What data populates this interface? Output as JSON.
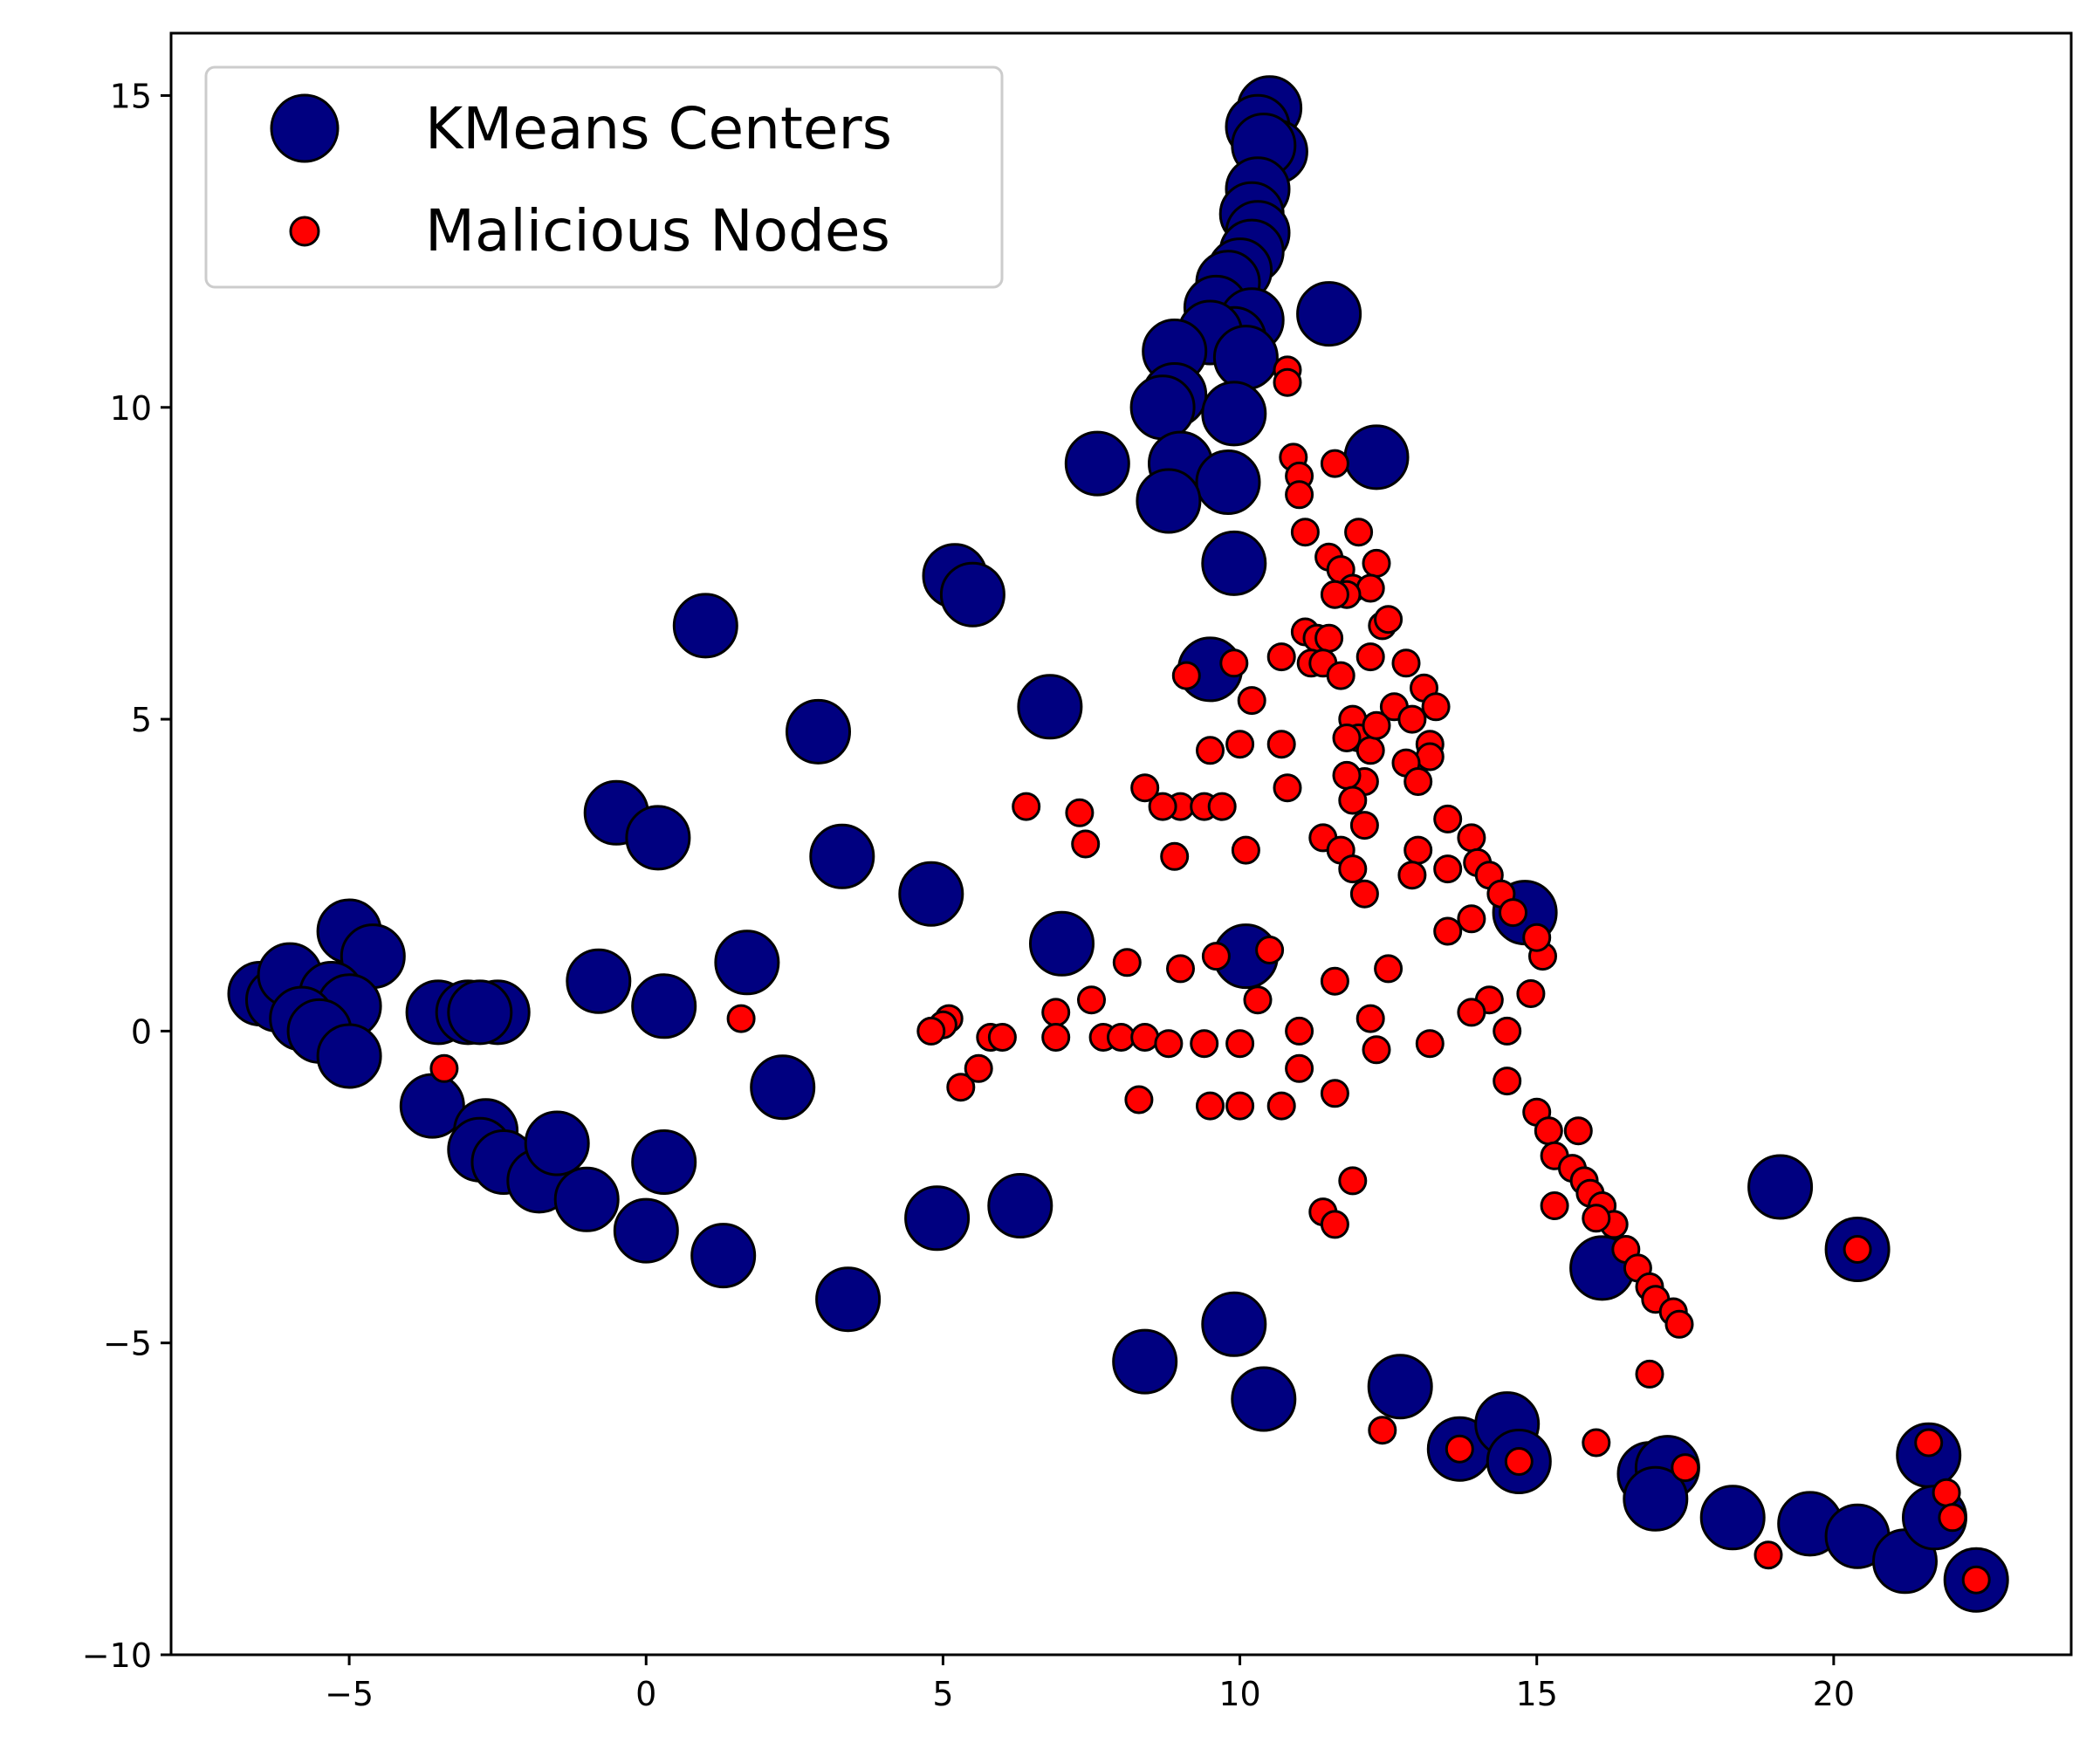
{
  "chart_data": {
    "type": "scatter",
    "xlim": [
      -8,
      24
    ],
    "ylim": [
      -10,
      16
    ],
    "xticks": [
      -5,
      0,
      5,
      10,
      15,
      20
    ],
    "yticks": [
      -10,
      -5,
      0,
      5,
      10,
      15
    ],
    "xtick_labels": [
      "−5",
      "0",
      "5",
      "10",
      "15",
      "20"
    ],
    "ytick_labels": [
      "−10",
      "−5",
      "0",
      "5",
      "10",
      "15"
    ],
    "grid": false,
    "legend_position": "top-left",
    "series": [
      {
        "name": "KMeans Centers",
        "color": "#000080",
        "edge_color": "#000000",
        "marker_size": "large",
        "points": [
          [
            10.5,
            14.8
          ],
          [
            10.3,
            14.5
          ],
          [
            10.6,
            14.1
          ],
          [
            10.4,
            14.2
          ],
          [
            10.3,
            13.5
          ],
          [
            10.2,
            13.1
          ],
          [
            10.3,
            12.8
          ],
          [
            10.2,
            12.5
          ],
          [
            10.0,
            12.2
          ],
          [
            9.8,
            12.0
          ],
          [
            9.6,
            11.6
          ],
          [
            10.2,
            11.4
          ],
          [
            9.9,
            11.1
          ],
          [
            9.5,
            11.2
          ],
          [
            8.9,
            10.9
          ],
          [
            11.5,
            11.5
          ],
          [
            10.1,
            10.8
          ],
          [
            8.9,
            10.2
          ],
          [
            8.7,
            10.0
          ],
          [
            9.9,
            9.9
          ],
          [
            12.3,
            9.2
          ],
          [
            9.0,
            9.1
          ],
          [
            7.6,
            9.1
          ],
          [
            9.8,
            8.8
          ],
          [
            8.8,
            8.5
          ],
          [
            9.9,
            7.5
          ],
          [
            5.2,
            7.3
          ],
          [
            5.5,
            7.0
          ],
          [
            1.0,
            6.5
          ],
          [
            9.5,
            5.8
          ],
          [
            6.8,
            5.2
          ],
          [
            2.9,
            4.8
          ],
          [
            -0.5,
            3.5
          ],
          [
            0.2,
            3.1
          ],
          [
            3.3,
            2.8
          ],
          [
            4.8,
            2.2
          ],
          [
            14.8,
            1.9
          ],
          [
            -5.0,
            1.6
          ],
          [
            -4.6,
            1.2
          ],
          [
            7.0,
            1.4
          ],
          [
            1.7,
            1.1
          ],
          [
            10.1,
            1.2
          ],
          [
            -0.8,
            0.8
          ],
          [
            -6.5,
            0.6
          ],
          [
            -6.2,
            0.5
          ],
          [
            -6.0,
            0.9
          ],
          [
            -5.3,
            0.6
          ],
          [
            -5.0,
            0.4
          ],
          [
            -5.8,
            0.2
          ],
          [
            -5.5,
            0.0
          ],
          [
            -3.5,
            0.3
          ],
          [
            -3.0,
            0.3
          ],
          [
            -2.5,
            0.3
          ],
          [
            -2.8,
            0.3
          ],
          [
            0.3,
            0.4
          ],
          [
            -5.0,
            -0.4
          ],
          [
            2.3,
            -0.9
          ],
          [
            -3.6,
            -1.2
          ],
          [
            -2.7,
            -1.6
          ],
          [
            -2.8,
            -1.9
          ],
          [
            -2.4,
            -2.1
          ],
          [
            -1.8,
            -2.4
          ],
          [
            -1.5,
            -1.8
          ],
          [
            -1.0,
            -2.7
          ],
          [
            0.3,
            -2.1
          ],
          [
            0.0,
            -3.2
          ],
          [
            1.3,
            -3.6
          ],
          [
            4.9,
            -3.0
          ],
          [
            6.3,
            -2.8
          ],
          [
            3.4,
            -4.3
          ],
          [
            16.1,
            -3.8
          ],
          [
            19.1,
            -2.5
          ],
          [
            20.4,
            -3.5
          ],
          [
            9.9,
            -4.7
          ],
          [
            8.4,
            -5.3
          ],
          [
            10.4,
            -5.9
          ],
          [
            12.7,
            -5.7
          ],
          [
            13.7,
            -6.7
          ],
          [
            14.5,
            -6.3
          ],
          [
            14.7,
            -6.9
          ],
          [
            16.9,
            -7.1
          ],
          [
            17.2,
            -7.0
          ],
          [
            17.0,
            -7.5
          ],
          [
            18.3,
            -7.8
          ],
          [
            19.6,
            -7.9
          ],
          [
            20.4,
            -8.1
          ],
          [
            21.2,
            -8.5
          ],
          [
            21.6,
            -6.8
          ],
          [
            21.7,
            -7.8
          ],
          [
            22.4,
            -8.8
          ]
        ]
      },
      {
        "name": "Malicious Nodes",
        "color": "#ff0000",
        "edge_color": "#000000",
        "marker_size": "small",
        "points": [
          [
            10.8,
            10.6
          ],
          [
            10.8,
            10.4
          ],
          [
            10.9,
            9.2
          ],
          [
            11.0,
            8.9
          ],
          [
            11.0,
            8.6
          ],
          [
            11.6,
            9.1
          ],
          [
            11.1,
            8.0
          ],
          [
            11.5,
            7.6
          ],
          [
            11.7,
            7.4
          ],
          [
            12.0,
            8.0
          ],
          [
            12.3,
            7.5
          ],
          [
            11.9,
            7.1
          ],
          [
            12.2,
            7.1
          ],
          [
            11.8,
            7.0
          ],
          [
            11.6,
            7.0
          ],
          [
            12.4,
            6.5
          ],
          [
            12.5,
            6.6
          ],
          [
            11.1,
            6.4
          ],
          [
            11.3,
            6.3
          ],
          [
            11.5,
            6.3
          ],
          [
            11.2,
            5.9
          ],
          [
            11.4,
            5.9
          ],
          [
            10.7,
            6.0
          ],
          [
            11.7,
            5.7
          ],
          [
            12.2,
            6.0
          ],
          [
            12.8,
            5.9
          ],
          [
            13.1,
            5.5
          ],
          [
            13.3,
            5.2
          ],
          [
            12.6,
            5.2
          ],
          [
            12.9,
            5.0
          ],
          [
            9.9,
            5.9
          ],
          [
            9.1,
            5.7
          ],
          [
            10.2,
            5.3
          ],
          [
            11.9,
            5.0
          ],
          [
            12.0,
            4.7
          ],
          [
            11.8,
            4.7
          ],
          [
            12.2,
            4.5
          ],
          [
            12.3,
            4.9
          ],
          [
            13.2,
            4.6
          ],
          [
            13.2,
            4.4
          ],
          [
            12.8,
            4.3
          ],
          [
            13.0,
            4.0
          ],
          [
            12.1,
            4.0
          ],
          [
            11.8,
            4.1
          ],
          [
            10.7,
            4.6
          ],
          [
            10.0,
            4.6
          ],
          [
            9.5,
            4.5
          ],
          [
            10.8,
            3.9
          ],
          [
            11.9,
            3.7
          ],
          [
            12.1,
            3.3
          ],
          [
            13.5,
            3.4
          ],
          [
            13.9,
            3.1
          ],
          [
            13.5,
            2.6
          ],
          [
            13.0,
            2.9
          ],
          [
            12.9,
            2.5
          ],
          [
            14.0,
            2.7
          ],
          [
            14.2,
            2.5
          ],
          [
            14.4,
            2.2
          ],
          [
            14.6,
            1.9
          ],
          [
            13.5,
            1.6
          ],
          [
            13.9,
            1.8
          ],
          [
            15.1,
            1.2
          ],
          [
            15.0,
            1.5
          ],
          [
            11.4,
            3.1
          ],
          [
            11.7,
            2.9
          ],
          [
            11.9,
            2.6
          ],
          [
            12.1,
            2.2
          ],
          [
            10.1,
            2.9
          ],
          [
            8.9,
            2.8
          ],
          [
            9.0,
            3.6
          ],
          [
            8.7,
            3.6
          ],
          [
            9.4,
            3.6
          ],
          [
            9.7,
            3.6
          ],
          [
            8.4,
            3.9
          ],
          [
            7.3,
            3.5
          ],
          [
            7.4,
            3.0
          ],
          [
            6.4,
            3.6
          ],
          [
            10.5,
            1.3
          ],
          [
            9.6,
            1.2
          ],
          [
            11.6,
            0.8
          ],
          [
            12.5,
            1.0
          ],
          [
            14.2,
            0.5
          ],
          [
            14.9,
            0.6
          ],
          [
            10.3,
            0.5
          ],
          [
            9.0,
            1.0
          ],
          [
            8.1,
            1.1
          ],
          [
            7.5,
            0.5
          ],
          [
            13.9,
            0.3
          ],
          [
            12.2,
            0.2
          ],
          [
            14.5,
            0.0
          ],
          [
            11.0,
            0.0
          ],
          [
            6.9,
            0.3
          ],
          [
            6.9,
            -0.1
          ],
          [
            5.1,
            0.2
          ],
          [
            5.0,
            0.1
          ],
          [
            4.8,
            0.0
          ],
          [
            5.8,
            -0.1
          ],
          [
            6.0,
            -0.1
          ],
          [
            7.7,
            -0.1
          ],
          [
            8.0,
            -0.1
          ],
          [
            8.4,
            -0.1
          ],
          [
            8.8,
            -0.2
          ],
          [
            9.4,
            -0.2
          ],
          [
            10.0,
            -0.2
          ],
          [
            12.3,
            -0.3
          ],
          [
            13.2,
            -0.2
          ],
          [
            5.3,
            -0.9
          ],
          [
            5.6,
            -0.6
          ],
          [
            11.0,
            -0.6
          ],
          [
            11.6,
            -1.0
          ],
          [
            8.3,
            -1.1
          ],
          [
            9.5,
            -1.2
          ],
          [
            10.0,
            -1.2
          ],
          [
            10.7,
            -1.2
          ],
          [
            14.5,
            -0.8
          ],
          [
            15.0,
            -1.3
          ],
          [
            15.2,
            -1.6
          ],
          [
            15.7,
            -1.6
          ],
          [
            15.3,
            -2.0
          ],
          [
            15.6,
            -2.2
          ],
          [
            15.8,
            -2.4
          ],
          [
            15.9,
            -2.6
          ],
          [
            16.1,
            -2.8
          ],
          [
            16.3,
            -3.1
          ],
          [
            16.5,
            -3.5
          ],
          [
            16.7,
            -3.8
          ],
          [
            16.9,
            -4.1
          ],
          [
            17.0,
            -4.3
          ],
          [
            17.3,
            -4.5
          ],
          [
            17.4,
            -4.7
          ],
          [
            15.3,
            -2.8
          ],
          [
            11.9,
            -2.4
          ],
          [
            11.4,
            -2.9
          ],
          [
            11.6,
            -3.1
          ],
          [
            16.0,
            -3.0
          ],
          [
            20.4,
            -3.5
          ],
          [
            -3.4,
            -0.6
          ],
          [
            1.6,
            0.2
          ],
          [
            16.9,
            -5.5
          ],
          [
            12.4,
            -6.4
          ],
          [
            13.7,
            -6.7
          ],
          [
            14.7,
            -6.9
          ],
          [
            16.0,
            -6.6
          ],
          [
            17.5,
            -7.0
          ],
          [
            21.6,
            -6.6
          ],
          [
            21.9,
            -7.4
          ],
          [
            22.0,
            -7.8
          ],
          [
            18.9,
            -8.4
          ],
          [
            22.4,
            -8.8
          ]
        ]
      }
    ]
  }
}
